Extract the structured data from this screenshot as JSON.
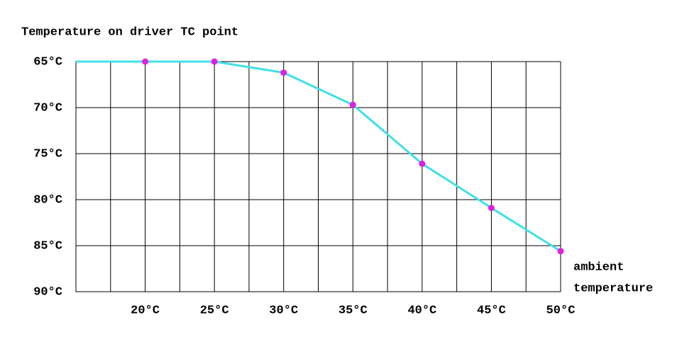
{
  "chart_data": {
    "type": "line",
    "title": "Temperature on driver TC point",
    "xlabel": [
      "ambient",
      "temperature"
    ],
    "x": [
      15,
      20,
      25,
      30,
      35,
      40,
      45,
      50
    ],
    "series": [
      {
        "color": "#40e0e8",
        "marker_color": "#e020e0",
        "values": [
          65,
          65,
          65,
          66.2,
          69.7,
          76.1,
          80.9,
          85.6
        ]
      }
    ],
    "xlim": [
      15,
      50
    ],
    "xticks": [
      {
        "value": 20,
        "label": "20°C"
      },
      {
        "value": 25,
        "label": "25°C"
      },
      {
        "value": 30,
        "label": "30°C"
      },
      {
        "value": 35,
        "label": "35°C"
      },
      {
        "value": 40,
        "label": "40°C"
      },
      {
        "value": 45,
        "label": "45°C"
      },
      {
        "value": 50,
        "label": "50°C"
      }
    ],
    "xminorticks": [
      17.5,
      22.5,
      27.5,
      32.5,
      37.5,
      42.5,
      47.5
    ],
    "ylim": [
      90,
      65
    ],
    "yticks": [
      {
        "value": 65,
        "label": "65°C"
      },
      {
        "value": 70,
        "label": "70°C"
      },
      {
        "value": 75,
        "label": "75°C"
      },
      {
        "value": 80,
        "label": "80°C"
      },
      {
        "value": 85,
        "label": "85°C"
      },
      {
        "value": 90,
        "label": "90°C"
      }
    ],
    "grid": true
  }
}
